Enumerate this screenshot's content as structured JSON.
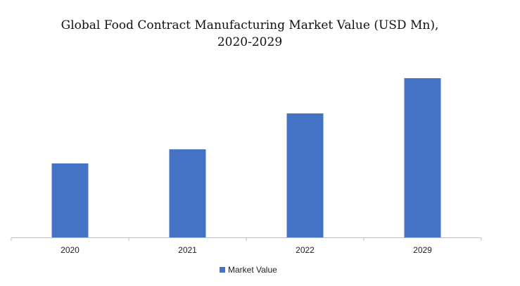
{
  "chart_data": {
    "type": "bar",
    "title": "Global Food Contract Manufacturing Market Value (USD Mn),",
    "subtitle": "2020-2029",
    "categories": [
      "2020",
      "2021",
      "2022",
      "2029"
    ],
    "series": [
      {
        "name": "Market Value",
        "values": [
          105,
          125,
          176,
          226
        ],
        "color": "#4472C4"
      }
    ],
    "ylim": [
      0,
      250
    ],
    "grid": false,
    "legend_position": "bottom"
  }
}
